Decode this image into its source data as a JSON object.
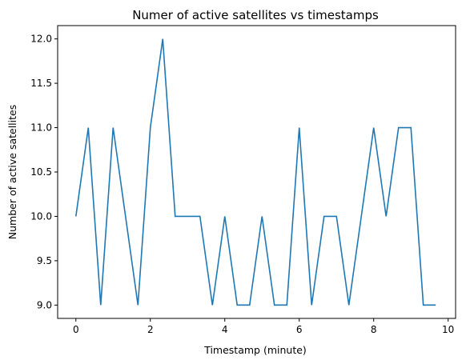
{
  "chart_data": {
    "type": "line",
    "title": "Numer of active satellites vs timestamps",
    "xlabel": "Timestamp (minute)",
    "ylabel": "Number of active satellites",
    "xlim": [
      -0.49,
      10.2
    ],
    "ylim": [
      8.85,
      12.15
    ],
    "x_ticks": [
      0,
      2,
      4,
      6,
      8,
      10
    ],
    "x_tick_labels": [
      "0",
      "2",
      "4",
      "6",
      "8",
      "10"
    ],
    "y_ticks": [
      9.0,
      9.5,
      10.0,
      10.5,
      11.0,
      11.5,
      12.0
    ],
    "y_tick_labels": [
      "9.0",
      "9.5",
      "10.0",
      "10.5",
      "11.0",
      "11.5",
      "12.0"
    ],
    "grid": false,
    "legend": "none",
    "line_color": "#1f77b4",
    "series": [
      {
        "x": [
          0,
          0.333,
          0.667,
          1.0,
          1.333,
          1.667,
          2.0,
          2.333,
          2.667,
          3.0,
          3.333,
          3.667,
          4.0,
          4.333,
          4.667,
          5.0,
          5.333,
          5.667,
          6.0,
          6.333,
          6.667,
          7.0,
          7.333,
          7.667,
          8.0,
          8.333,
          8.667,
          9.0,
          9.333,
          9.667
        ],
        "values": [
          10,
          11,
          9,
          11,
          10,
          9,
          11,
          12,
          10,
          10,
          10,
          9,
          10,
          9,
          9,
          10,
          9,
          9,
          11,
          9,
          10,
          10,
          9,
          10,
          11,
          10,
          11,
          11,
          9,
          9
        ]
      }
    ]
  }
}
